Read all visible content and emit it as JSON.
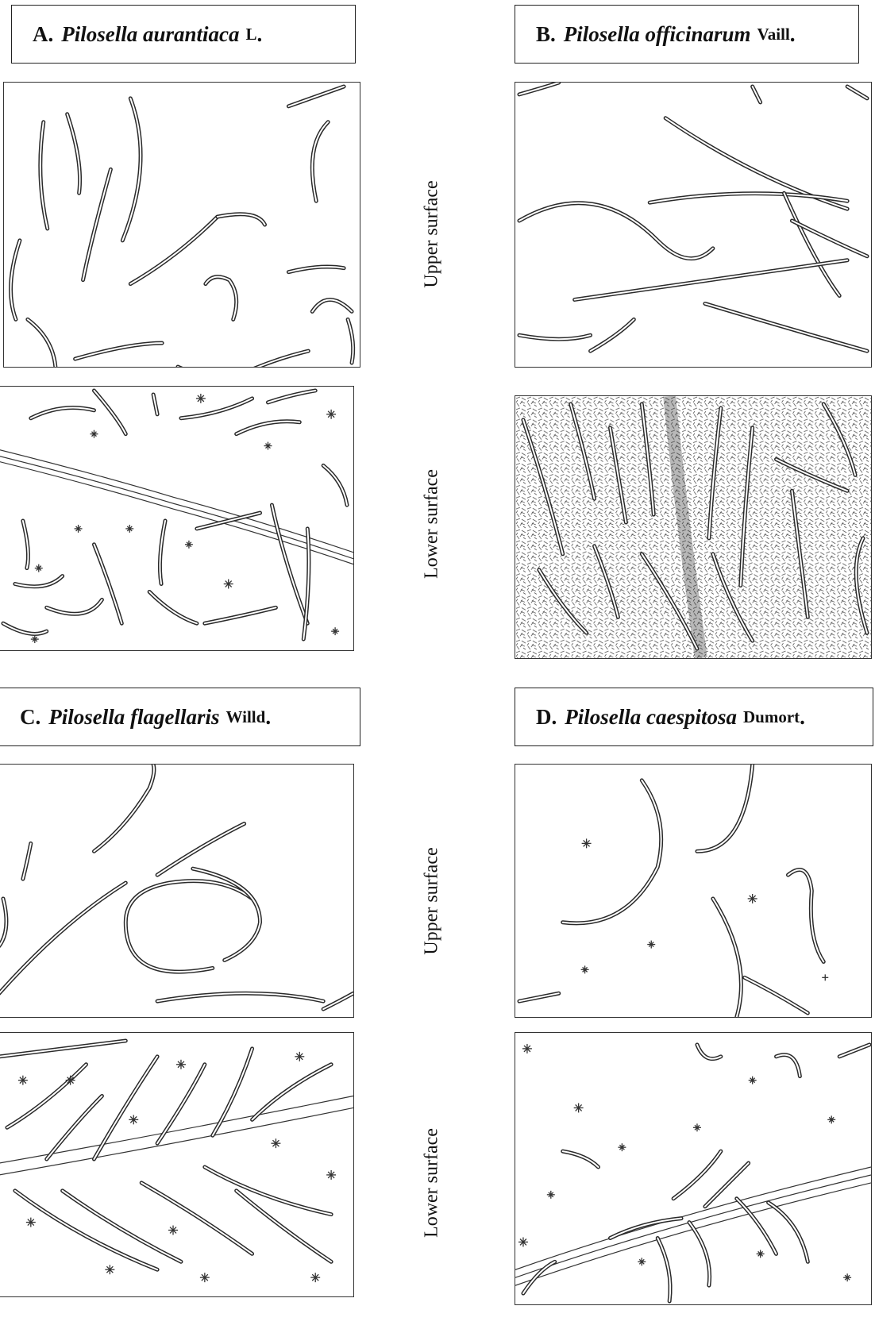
{
  "figures": [
    {
      "id": "A",
      "letter": "A.",
      "species": "Pilosella aurantiaca",
      "author": "L",
      "end": "."
    },
    {
      "id": "B",
      "letter": "B.",
      "species": "Pilosella officinarum",
      "author": "Vaill",
      "end": "."
    },
    {
      "id": "C",
      "letter": "C.",
      "species": "Pilosella flagellaris",
      "author": "Willd",
      "end": "."
    },
    {
      "id": "D",
      "letter": "D.",
      "species": "Pilosella caespitosa",
      "author": "Dumort",
      "end": "."
    }
  ],
  "side_labels": {
    "upper": "Upper surface",
    "lower": "Lower surface"
  }
}
